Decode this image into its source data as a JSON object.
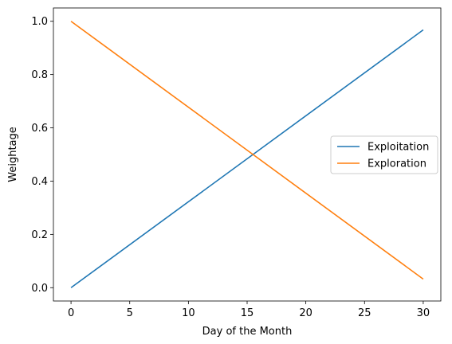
{
  "chart_data": {
    "type": "line",
    "title": "",
    "xlabel": "Day of the Month",
    "ylabel": "Weightage",
    "xlim": [
      -1.5,
      31.5
    ],
    "ylim": [
      -0.05,
      1.05
    ],
    "xticks": [
      0,
      5,
      10,
      15,
      20,
      25,
      30
    ],
    "yticks": [
      0.0,
      0.2,
      0.4,
      0.6,
      0.8,
      1.0
    ],
    "xtick_labels": [
      "0",
      "5",
      "10",
      "15",
      "20",
      "25",
      "30"
    ],
    "ytick_labels": [
      "0.0",
      "0.2",
      "0.4",
      "0.6",
      "0.8",
      "1.0"
    ],
    "grid": false,
    "legend_position": "center-right",
    "series": [
      {
        "name": "Exploitation",
        "color": "#1f77b4",
        "x": [
          0,
          30
        ],
        "y": [
          0.0,
          0.9677
        ]
      },
      {
        "name": "Exploration",
        "color": "#ff7f0e",
        "x": [
          0,
          30
        ],
        "y": [
          1.0,
          0.0323
        ]
      }
    ]
  }
}
